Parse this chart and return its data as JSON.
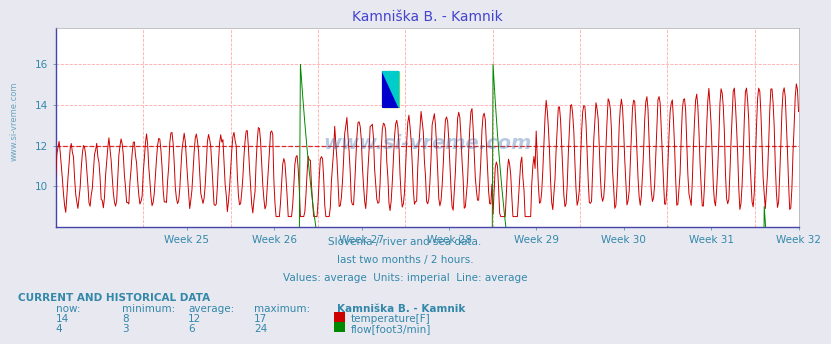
{
  "title": "Kamniška B. - Kamnik",
  "subtitle_lines": [
    "Slovenia / river and sea data.",
    "last two months / 2 hours.",
    "Values: average  Units: imperial  Line: average"
  ],
  "table_header": "CURRENT AND HISTORICAL DATA",
  "table_cols": [
    "now:",
    "minimum:",
    "average:",
    "maximum:",
    "Kamniška B. - Kamnik"
  ],
  "temp_row": [
    "14",
    "8",
    "12",
    "17",
    "temperature[F]"
  ],
  "flow_row": [
    "4",
    "3",
    "6",
    "24",
    "flow[foot3/min]"
  ],
  "temp_color": "#cc0000",
  "flow_color": "#008800",
  "avg_temp": 12,
  "avg_flow": 6,
  "ylim_min": 8,
  "ylim_max": 17,
  "yticks": [
    10,
    12,
    14,
    16
  ],
  "week_labels": [
    "Week 25",
    "Week 26",
    "Week 27",
    "Week 28",
    "Week 29",
    "Week 30",
    "Week 31",
    "Week 32"
  ],
  "bg_color": "#e8e8f0",
  "plot_bg": "#ffffff",
  "grid_color": "#ffaaaa",
  "avg_line_color_temp": "#cc0000",
  "avg_line_color_flow": "#008800",
  "title_color": "#4444cc",
  "text_color": "#3388aa",
  "label_color": "#3388aa",
  "watermark": "www.si-vreme.com",
  "logo_yellow": "#ffee00",
  "logo_blue": "#0000cc",
  "logo_cyan": "#00cccc"
}
